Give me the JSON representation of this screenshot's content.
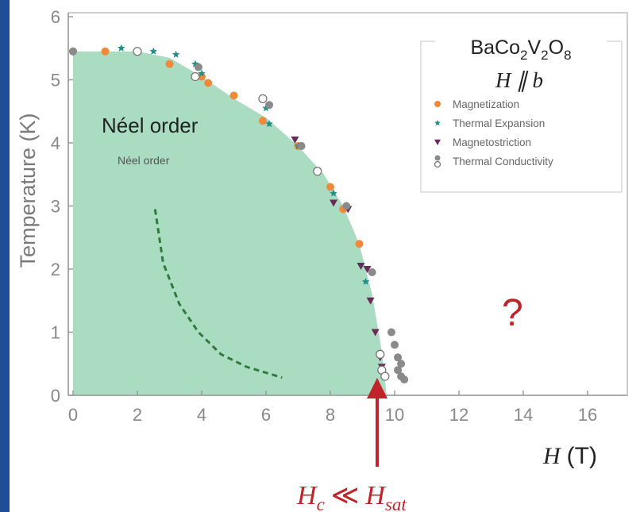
{
  "colors": {
    "fill": "#a9dcc0",
    "magnetization": "#f08a3a",
    "thermal_expansion": "#1f8f88",
    "magnetostriction": "#6a2a5a",
    "thermal_conductivity": "#8a8a8a",
    "arrow": "#c0242a",
    "dashed": "#2f7a3c"
  },
  "chart_data": {
    "type": "scatter",
    "xlabel": "H",
    "xlabel_unit": "(T)",
    "ylabel": "Temperature (K)",
    "xlim": [
      0,
      18
    ],
    "ylim": [
      0,
      6
    ],
    "xticks": [
      "0",
      "2",
      "4",
      "6",
      "8",
      "10",
      "12",
      "14",
      "16"
    ],
    "yticks": [
      "0",
      "1",
      "2",
      "3",
      "4",
      "5",
      "6"
    ],
    "xtick_values": [
      0,
      2,
      4,
      6,
      8,
      10,
      12,
      14,
      16
    ],
    "ytick_values": [
      0,
      1,
      2,
      3,
      4,
      5,
      6
    ],
    "grid": false,
    "legend_position": "top-right",
    "legend": {
      "title_compound": "BaCo2V2O8",
      "title_field": "H ∥ b",
      "entries": [
        "Magnetization",
        "Thermal Expansion",
        "Magnetostriction",
        "Thermal Conductivity"
      ]
    },
    "phase_boundary": [
      [
        0,
        5.45
      ],
      [
        2,
        5.45
      ],
      [
        3,
        5.35
      ],
      [
        4,
        5.05
      ],
      [
        5,
        4.7
      ],
      [
        6,
        4.4
      ],
      [
        7,
        3.95
      ],
      [
        7.8,
        3.5
      ],
      [
        8.4,
        3.0
      ],
      [
        8.9,
        2.4
      ],
      [
        9.3,
        1.6
      ],
      [
        9.6,
        0.7
      ],
      [
        9.75,
        0
      ]
    ],
    "series": [
      {
        "name": "Magnetization",
        "marker": "circle",
        "x": [
          0,
          1,
          2,
          3,
          4,
          4.2,
          5,
          5.9,
          7,
          8,
          8.4,
          8.9
        ],
        "y": [
          5.45,
          5.45,
          5.45,
          5.25,
          5.05,
          4.95,
          4.75,
          4.35,
          3.95,
          3.3,
          2.95,
          2.4
        ]
      },
      {
        "name": "Thermal Expansion",
        "marker": "star",
        "x": [
          0,
          1.5,
          2.5,
          3.2,
          3.8,
          4,
          6,
          6.1,
          7,
          8.1,
          9.1
        ],
        "y": [
          5.45,
          5.5,
          5.45,
          5.4,
          5.25,
          5.1,
          4.55,
          4.3,
          3.95,
          3.2,
          1.8
        ]
      },
      {
        "name": "Magnetostriction",
        "marker": "triangle-down",
        "x": [
          6.9,
          8.1,
          8.55,
          8.95,
          9.15,
          9.25,
          9.4,
          9.55,
          9.6
        ],
        "y": [
          4.05,
          3.05,
          2.95,
          2.05,
          2.0,
          1.5,
          1.0,
          0.6,
          0.45
        ]
      },
      {
        "name": "Thermal Conductivity",
        "marker": "circle-filled-gray",
        "x": [
          0,
          3.9,
          6.1,
          7.1,
          8.5,
          9.3,
          9.9,
          10.0,
          10.1,
          10.2,
          10.1,
          10.2,
          10.3
        ],
        "y": [
          5.45,
          5.2,
          4.6,
          3.95,
          3.0,
          1.95,
          1.0,
          0.8,
          0.6,
          0.5,
          0.4,
          0.3,
          0.25
        ]
      },
      {
        "name": "Thermal Conductivity (open)",
        "marker": "circle-open",
        "x": [
          2,
          3.8,
          5.9,
          7.6,
          9.55,
          9.6,
          9.7
        ],
        "y": [
          5.45,
          5.05,
          4.7,
          3.55,
          0.65,
          0.4,
          0.3
        ]
      }
    ],
    "dashed_curve": [
      [
        2.55,
        2.95
      ],
      [
        2.8,
        2.1
      ],
      [
        3.3,
        1.45
      ],
      [
        3.9,
        1.0
      ],
      [
        4.6,
        0.65
      ],
      [
        5.4,
        0.45
      ],
      [
        6.5,
        0.28
      ]
    ]
  },
  "annotations": {
    "neel_large": "Néel order",
    "neel_small": "Néel order",
    "question": "?",
    "hc_text": "H_c ≪ H_sat"
  }
}
